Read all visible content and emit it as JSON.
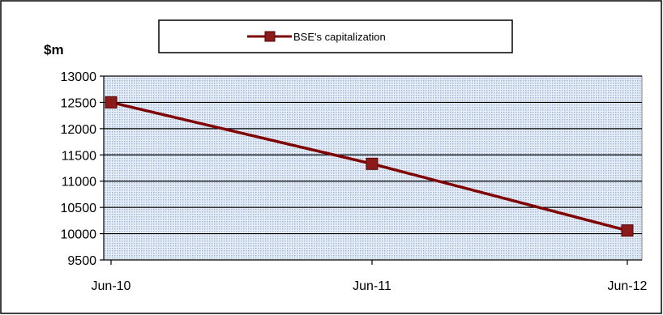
{
  "chart_data": {
    "type": "line",
    "title": "",
    "xlabel": "",
    "ylabel": "$m",
    "categories": [
      "Jun-10",
      "Jun-11",
      "Jun-12"
    ],
    "series": [
      {
        "name": "BSE's capitalization",
        "values": [
          12500,
          11330,
          10060
        ]
      }
    ],
    "ylim": [
      9500,
      13000
    ],
    "yticks": [
      "9500",
      "10000",
      "10500",
      "11000",
      "11500",
      "12000",
      "12500",
      "13000"
    ],
    "grid": true,
    "legend": "top-center",
    "colors": {
      "line": "#7f0000",
      "marker": "#8b1a1a",
      "plot_fill": "#b8cce4",
      "frame": "#000000"
    }
  }
}
